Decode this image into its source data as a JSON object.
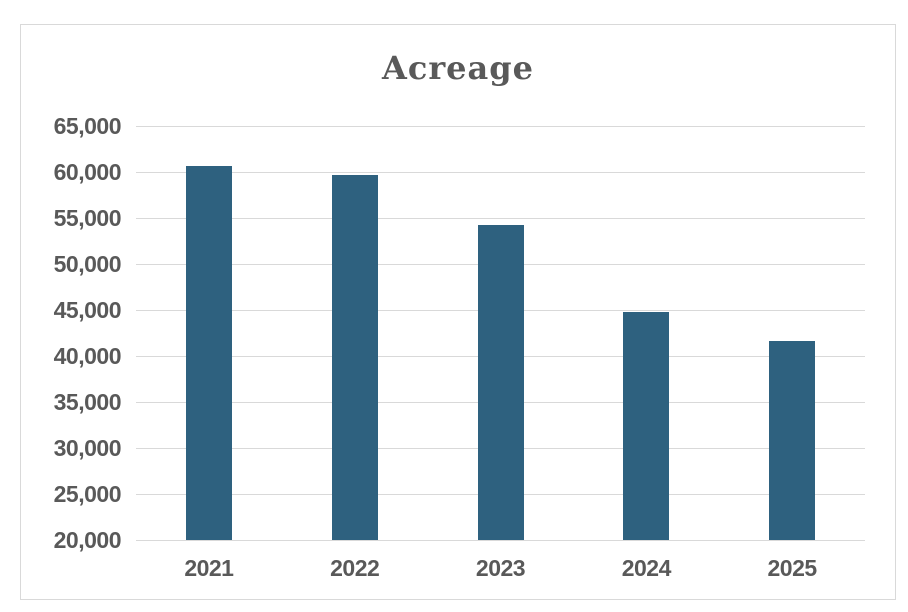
{
  "chart_data": {
    "type": "bar",
    "title": "Acreage",
    "categories": [
      "2021",
      "2022",
      "2023",
      "2024",
      "2025"
    ],
    "values": [
      60700,
      59700,
      54200,
      44800,
      41600
    ],
    "xlabel": "",
    "ylabel": "",
    "ylim": [
      20000,
      65000
    ],
    "ytick_step": 5000,
    "ytick_labels": [
      "65,000",
      "60,000",
      "55,000",
      "50,000",
      "45,000",
      "40,000",
      "35,000",
      "30,000",
      "25,000",
      "20,000"
    ],
    "grid": true,
    "legend": false,
    "colors": {
      "bar": "#2E617F",
      "text": "#595959",
      "gridline": "#D9D9D9",
      "frame_border": "#D9D9D9",
      "background": "#FFFFFF"
    }
  }
}
